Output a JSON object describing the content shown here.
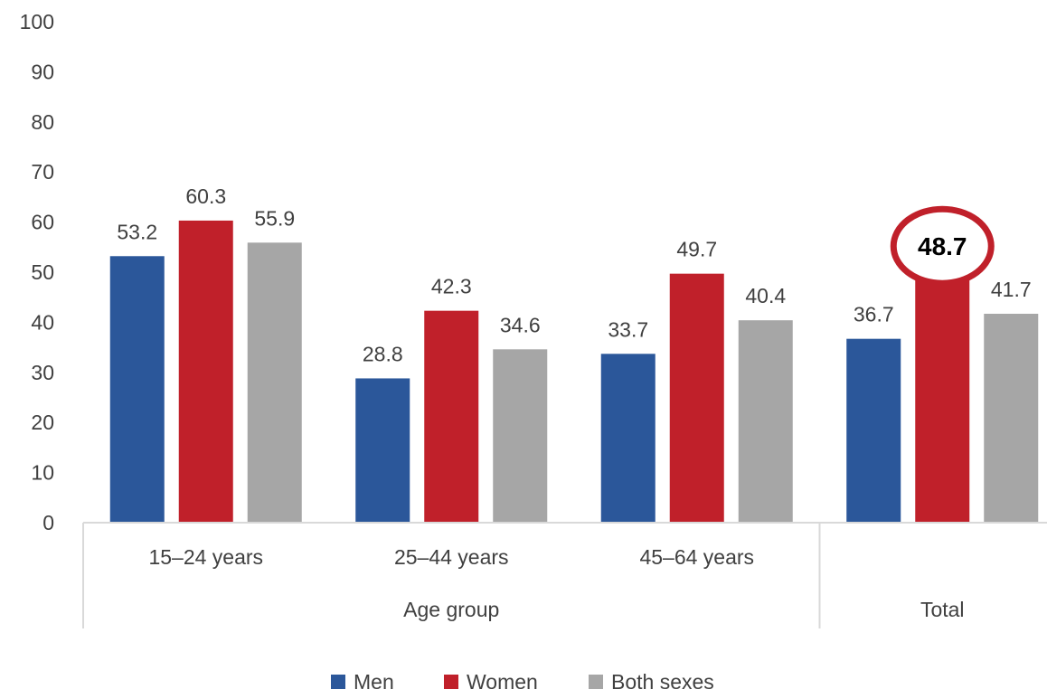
{
  "chart_data": {
    "type": "bar",
    "categories": [
      "15–24 years",
      "25–44 years",
      "45–64 years",
      "Total"
    ],
    "category_groups": [
      {
        "label": "Age group",
        "categories": [
          "15–24 years",
          "25–44 years",
          "45–64 years"
        ]
      },
      {
        "label": "Total",
        "categories": [
          "Total"
        ]
      }
    ],
    "series": [
      {
        "name": "Men",
        "color": "#2B579A",
        "values": [
          53.2,
          28.8,
          33.7,
          36.7
        ]
      },
      {
        "name": "Women",
        "color": "#C0202A",
        "values": [
          60.3,
          42.3,
          49.7,
          48.7
        ]
      },
      {
        "name": "Both sexes",
        "color": "#A6A6A6",
        "values": [
          55.9,
          34.6,
          40.4,
          41.7
        ]
      }
    ],
    "value_labels": [
      [
        "53.2",
        "28.8",
        "33.7",
        "36.7"
      ],
      [
        "60.3",
        "42.3",
        "49.7",
        "48.7"
      ],
      [
        "55.9",
        "34.6",
        "40.4",
        "41.7"
      ]
    ],
    "highlight": {
      "series": "Women",
      "category": "Total",
      "circle_color": "#C0202A"
    },
    "ylim": [
      0,
      100
    ],
    "yticks": [
      "0",
      "10",
      "20",
      "30",
      "40",
      "50",
      "60",
      "70",
      "80",
      "90",
      "100"
    ],
    "gridlines": false,
    "legend_position": "bottom-center",
    "title": "",
    "xlabel": "",
    "ylabel": ""
  }
}
